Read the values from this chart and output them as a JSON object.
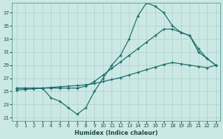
{
  "xlabel": "Humidex (Indice chaleur)",
  "bg_color": "#cce8e4",
  "grid_color": "#aacfca",
  "line_color": "#1a6b6b",
  "xlim": [
    -0.5,
    23.5
  ],
  "ylim": [
    20.5,
    38.5
  ],
  "xticks": [
    0,
    1,
    2,
    3,
    4,
    5,
    6,
    7,
    8,
    9,
    10,
    11,
    12,
    13,
    14,
    15,
    16,
    17,
    18,
    19,
    20,
    21,
    22,
    23
  ],
  "yticks": [
    21,
    23,
    25,
    27,
    29,
    31,
    33,
    35,
    37
  ],
  "series_straight_x": [
    0,
    1,
    2,
    3,
    4,
    5,
    6,
    7,
    8,
    9,
    10,
    11,
    12,
    13,
    14,
    15,
    16,
    17,
    18,
    19,
    20,
    21,
    22,
    23
  ],
  "series_straight_y": [
    25.2,
    25.3,
    25.4,
    25.5,
    25.6,
    25.7,
    25.8,
    25.9,
    26.0,
    26.2,
    26.5,
    26.8,
    27.1,
    27.5,
    27.9,
    28.3,
    28.7,
    29.1,
    29.4,
    29.2,
    29.0,
    28.8,
    28.6,
    29.0
  ],
  "series_mid_x": [
    0,
    1,
    2,
    3,
    4,
    5,
    6,
    7,
    8,
    9,
    10,
    11,
    12,
    13,
    14,
    15,
    16,
    17,
    18,
    19,
    20,
    21,
    22,
    23
  ],
  "series_mid_y": [
    25.5,
    25.5,
    25.5,
    25.5,
    25.5,
    25.5,
    25.5,
    25.5,
    25.8,
    26.5,
    27.5,
    28.5,
    29.5,
    30.5,
    31.5,
    32.5,
    33.5,
    34.5,
    34.5,
    34.0,
    33.5,
    31.5,
    30.0,
    29.0
  ],
  "series_peak_x": [
    0,
    1,
    2,
    3,
    4,
    5,
    6,
    7,
    8,
    9,
    10,
    11,
    12,
    13,
    14,
    15,
    16,
    17,
    18,
    19,
    20,
    21,
    22,
    23
  ],
  "series_peak_y": [
    25.5,
    25.5,
    25.5,
    25.5,
    24.0,
    23.5,
    22.5,
    21.5,
    22.5,
    25.0,
    27.0,
    29.0,
    30.5,
    33.0,
    36.5,
    38.5,
    38.0,
    37.0,
    35.0,
    34.0,
    33.5,
    31.0,
    30.0,
    29.0
  ]
}
